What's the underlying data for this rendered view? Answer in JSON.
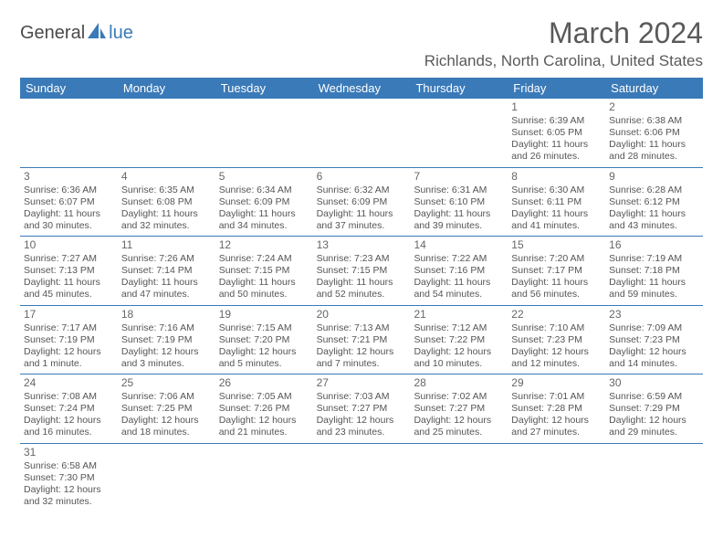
{
  "logo": {
    "part1": "General",
    "part2": "lue"
  },
  "title": "March 2024",
  "location": "Richlands, North Carolina, United States",
  "colors": {
    "header_bg": "#3a7ab8",
    "header_text": "#ffffff",
    "text": "#555555",
    "title_text": "#5a5a5a",
    "border": "#3a7ab8"
  },
  "day_headers": [
    "Sunday",
    "Monday",
    "Tuesday",
    "Wednesday",
    "Thursday",
    "Friday",
    "Saturday"
  ],
  "weeks": [
    [
      null,
      null,
      null,
      null,
      null,
      {
        "n": "1",
        "sr": "6:39 AM",
        "ss": "6:05 PM",
        "dl": "11 hours and 26 minutes."
      },
      {
        "n": "2",
        "sr": "6:38 AM",
        "ss": "6:06 PM",
        "dl": "11 hours and 28 minutes."
      }
    ],
    [
      {
        "n": "3",
        "sr": "6:36 AM",
        "ss": "6:07 PM",
        "dl": "11 hours and 30 minutes."
      },
      {
        "n": "4",
        "sr": "6:35 AM",
        "ss": "6:08 PM",
        "dl": "11 hours and 32 minutes."
      },
      {
        "n": "5",
        "sr": "6:34 AM",
        "ss": "6:09 PM",
        "dl": "11 hours and 34 minutes."
      },
      {
        "n": "6",
        "sr": "6:32 AM",
        "ss": "6:09 PM",
        "dl": "11 hours and 37 minutes."
      },
      {
        "n": "7",
        "sr": "6:31 AM",
        "ss": "6:10 PM",
        "dl": "11 hours and 39 minutes."
      },
      {
        "n": "8",
        "sr": "6:30 AM",
        "ss": "6:11 PM",
        "dl": "11 hours and 41 minutes."
      },
      {
        "n": "9",
        "sr": "6:28 AM",
        "ss": "6:12 PM",
        "dl": "11 hours and 43 minutes."
      }
    ],
    [
      {
        "n": "10",
        "sr": "7:27 AM",
        "ss": "7:13 PM",
        "dl": "11 hours and 45 minutes."
      },
      {
        "n": "11",
        "sr": "7:26 AM",
        "ss": "7:14 PM",
        "dl": "11 hours and 47 minutes."
      },
      {
        "n": "12",
        "sr": "7:24 AM",
        "ss": "7:15 PM",
        "dl": "11 hours and 50 minutes."
      },
      {
        "n": "13",
        "sr": "7:23 AM",
        "ss": "7:15 PM",
        "dl": "11 hours and 52 minutes."
      },
      {
        "n": "14",
        "sr": "7:22 AM",
        "ss": "7:16 PM",
        "dl": "11 hours and 54 minutes."
      },
      {
        "n": "15",
        "sr": "7:20 AM",
        "ss": "7:17 PM",
        "dl": "11 hours and 56 minutes."
      },
      {
        "n": "16",
        "sr": "7:19 AM",
        "ss": "7:18 PM",
        "dl": "11 hours and 59 minutes."
      }
    ],
    [
      {
        "n": "17",
        "sr": "7:17 AM",
        "ss": "7:19 PM",
        "dl": "12 hours and 1 minute."
      },
      {
        "n": "18",
        "sr": "7:16 AM",
        "ss": "7:19 PM",
        "dl": "12 hours and 3 minutes."
      },
      {
        "n": "19",
        "sr": "7:15 AM",
        "ss": "7:20 PM",
        "dl": "12 hours and 5 minutes."
      },
      {
        "n": "20",
        "sr": "7:13 AM",
        "ss": "7:21 PM",
        "dl": "12 hours and 7 minutes."
      },
      {
        "n": "21",
        "sr": "7:12 AM",
        "ss": "7:22 PM",
        "dl": "12 hours and 10 minutes."
      },
      {
        "n": "22",
        "sr": "7:10 AM",
        "ss": "7:23 PM",
        "dl": "12 hours and 12 minutes."
      },
      {
        "n": "23",
        "sr": "7:09 AM",
        "ss": "7:23 PM",
        "dl": "12 hours and 14 minutes."
      }
    ],
    [
      {
        "n": "24",
        "sr": "7:08 AM",
        "ss": "7:24 PM",
        "dl": "12 hours and 16 minutes."
      },
      {
        "n": "25",
        "sr": "7:06 AM",
        "ss": "7:25 PM",
        "dl": "12 hours and 18 minutes."
      },
      {
        "n": "26",
        "sr": "7:05 AM",
        "ss": "7:26 PM",
        "dl": "12 hours and 21 minutes."
      },
      {
        "n": "27",
        "sr": "7:03 AM",
        "ss": "7:27 PM",
        "dl": "12 hours and 23 minutes."
      },
      {
        "n": "28",
        "sr": "7:02 AM",
        "ss": "7:27 PM",
        "dl": "12 hours and 25 minutes."
      },
      {
        "n": "29",
        "sr": "7:01 AM",
        "ss": "7:28 PM",
        "dl": "12 hours and 27 minutes."
      },
      {
        "n": "30",
        "sr": "6:59 AM",
        "ss": "7:29 PM",
        "dl": "12 hours and 29 minutes."
      }
    ],
    [
      {
        "n": "31",
        "sr": "6:58 AM",
        "ss": "7:30 PM",
        "dl": "12 hours and 32 minutes."
      },
      null,
      null,
      null,
      null,
      null,
      null
    ]
  ],
  "labels": {
    "sunrise": "Sunrise:",
    "sunset": "Sunset:",
    "daylight": "Daylight:"
  }
}
